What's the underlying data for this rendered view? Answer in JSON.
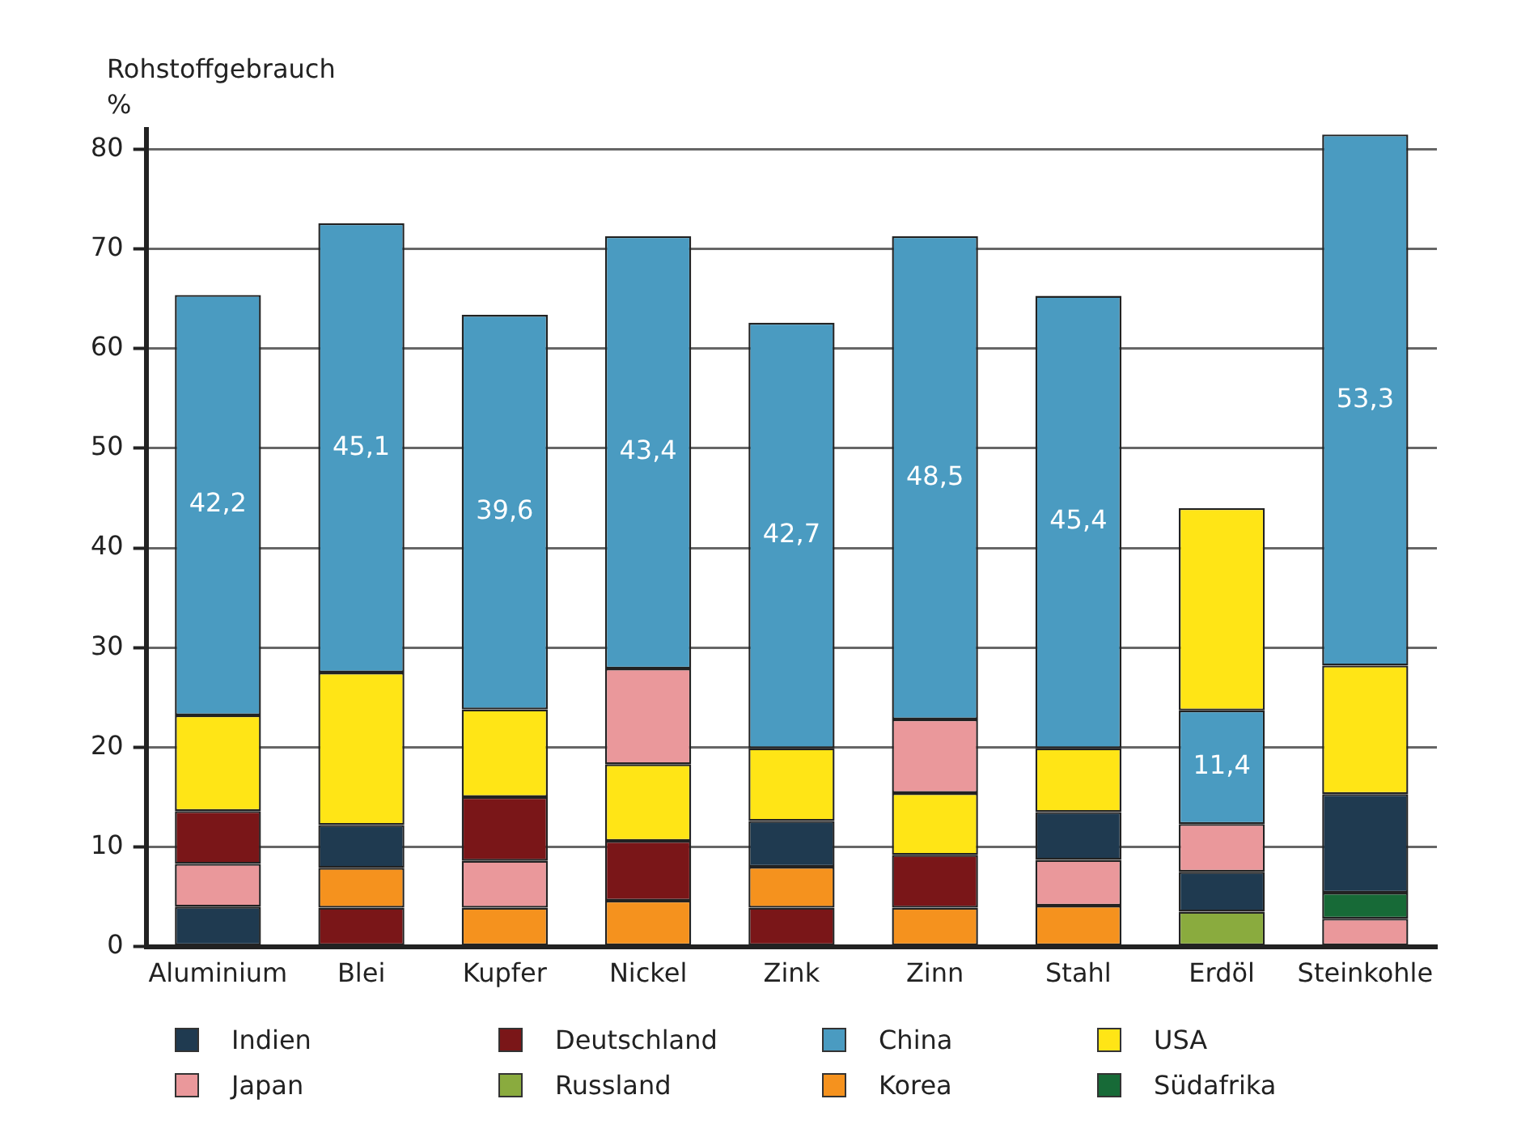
{
  "chart_data": {
    "type": "bar",
    "ylabel": "Rohstoffgebrauch\n%",
    "categories": [
      "Aluminium",
      "Blei",
      "Kupfer",
      "Nickel",
      "Zink",
      "Zinn",
      "Stahl",
      "Erdöl",
      "Steinkohle"
    ],
    "series": [
      {
        "name": "Indien",
        "color": "#1f3a50",
        "base": [
          0,
          7.9,
          null,
          null,
          8.0,
          null,
          8.7,
          3.5,
          5.4
        ],
        "values": [
          4.0,
          4.3,
          null,
          null,
          4.6,
          null,
          4.8,
          4.0,
          9.9
        ]
      },
      {
        "name": "Japan",
        "color": "#ea989b",
        "base": [
          4.0,
          null,
          3.9,
          18.3,
          null,
          15.4,
          4.1,
          7.5,
          0
        ],
        "values": [
          4.3,
          null,
          4.7,
          9.6,
          null,
          7.4,
          4.6,
          4.8,
          2.8
        ]
      },
      {
        "name": "Deutschland",
        "color": "#7a1618",
        "base": [
          8.3,
          0,
          8.6,
          4.6,
          0,
          3.9,
          null,
          null,
          null
        ],
        "values": [
          5.3,
          3.9,
          6.4,
          6.0,
          3.9,
          5.3,
          null,
          null,
          null
        ]
      },
      {
        "name": "Russland",
        "color": "#8aab3e",
        "base": [
          null,
          null,
          null,
          null,
          null,
          null,
          null,
          0,
          null
        ],
        "values": [
          null,
          null,
          null,
          null,
          null,
          null,
          null,
          3.5,
          null
        ]
      },
      {
        "name": "China",
        "color": "#4a9bc1",
        "base": [
          23.2,
          27.5,
          23.8,
          27.9,
          19.9,
          22.8,
          19.9,
          12.3,
          28.2
        ],
        "values": [
          42.2,
          45.1,
          39.6,
          43.4,
          42.7,
          48.5,
          45.4,
          11.4,
          53.3
        ],
        "value_labels": [
          "42,2",
          "45,1",
          "39,6",
          "43,4",
          "42,7",
          "48,5",
          "45,4",
          "11,4",
          "53,3"
        ]
      },
      {
        "name": "Korea",
        "color": "#f5921e",
        "base": [
          null,
          3.9,
          0,
          0,
          3.9,
          0,
          0,
          null,
          null
        ],
        "values": [
          null,
          4.0,
          3.9,
          4.6,
          4.1,
          3.9,
          4.1,
          null,
          null
        ]
      },
      {
        "name": "USA",
        "color": "#ffe516",
        "base": [
          13.6,
          12.2,
          15.0,
          10.6,
          12.6,
          9.2,
          13.5,
          23.7,
          15.3
        ],
        "values": [
          9.6,
          15.3,
          8.8,
          7.7,
          7.3,
          6.2,
          6.4,
          20.3,
          12.9
        ]
      },
      {
        "name": "Südafrika",
        "color": "#176a37",
        "base": [
          null,
          null,
          null,
          null,
          null,
          null,
          null,
          null,
          2.8
        ],
        "values": [
          null,
          null,
          null,
          null,
          null,
          null,
          null,
          null,
          2.6
        ]
      }
    ],
    "ylim": [
      0,
      82
    ],
    "yticks": [
      0,
      10,
      20,
      30,
      40,
      50,
      60,
      70,
      80
    ],
    "grid": "y",
    "legend": "bottom"
  }
}
